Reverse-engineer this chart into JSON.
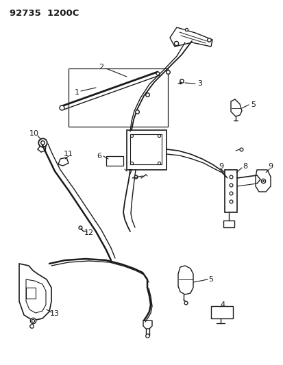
{
  "title_text": "92735  1200C",
  "bg_color": "#ffffff",
  "line_color": "#1a1a1a",
  "fig_width": 4.14,
  "fig_height": 5.33,
  "dpi": 100
}
